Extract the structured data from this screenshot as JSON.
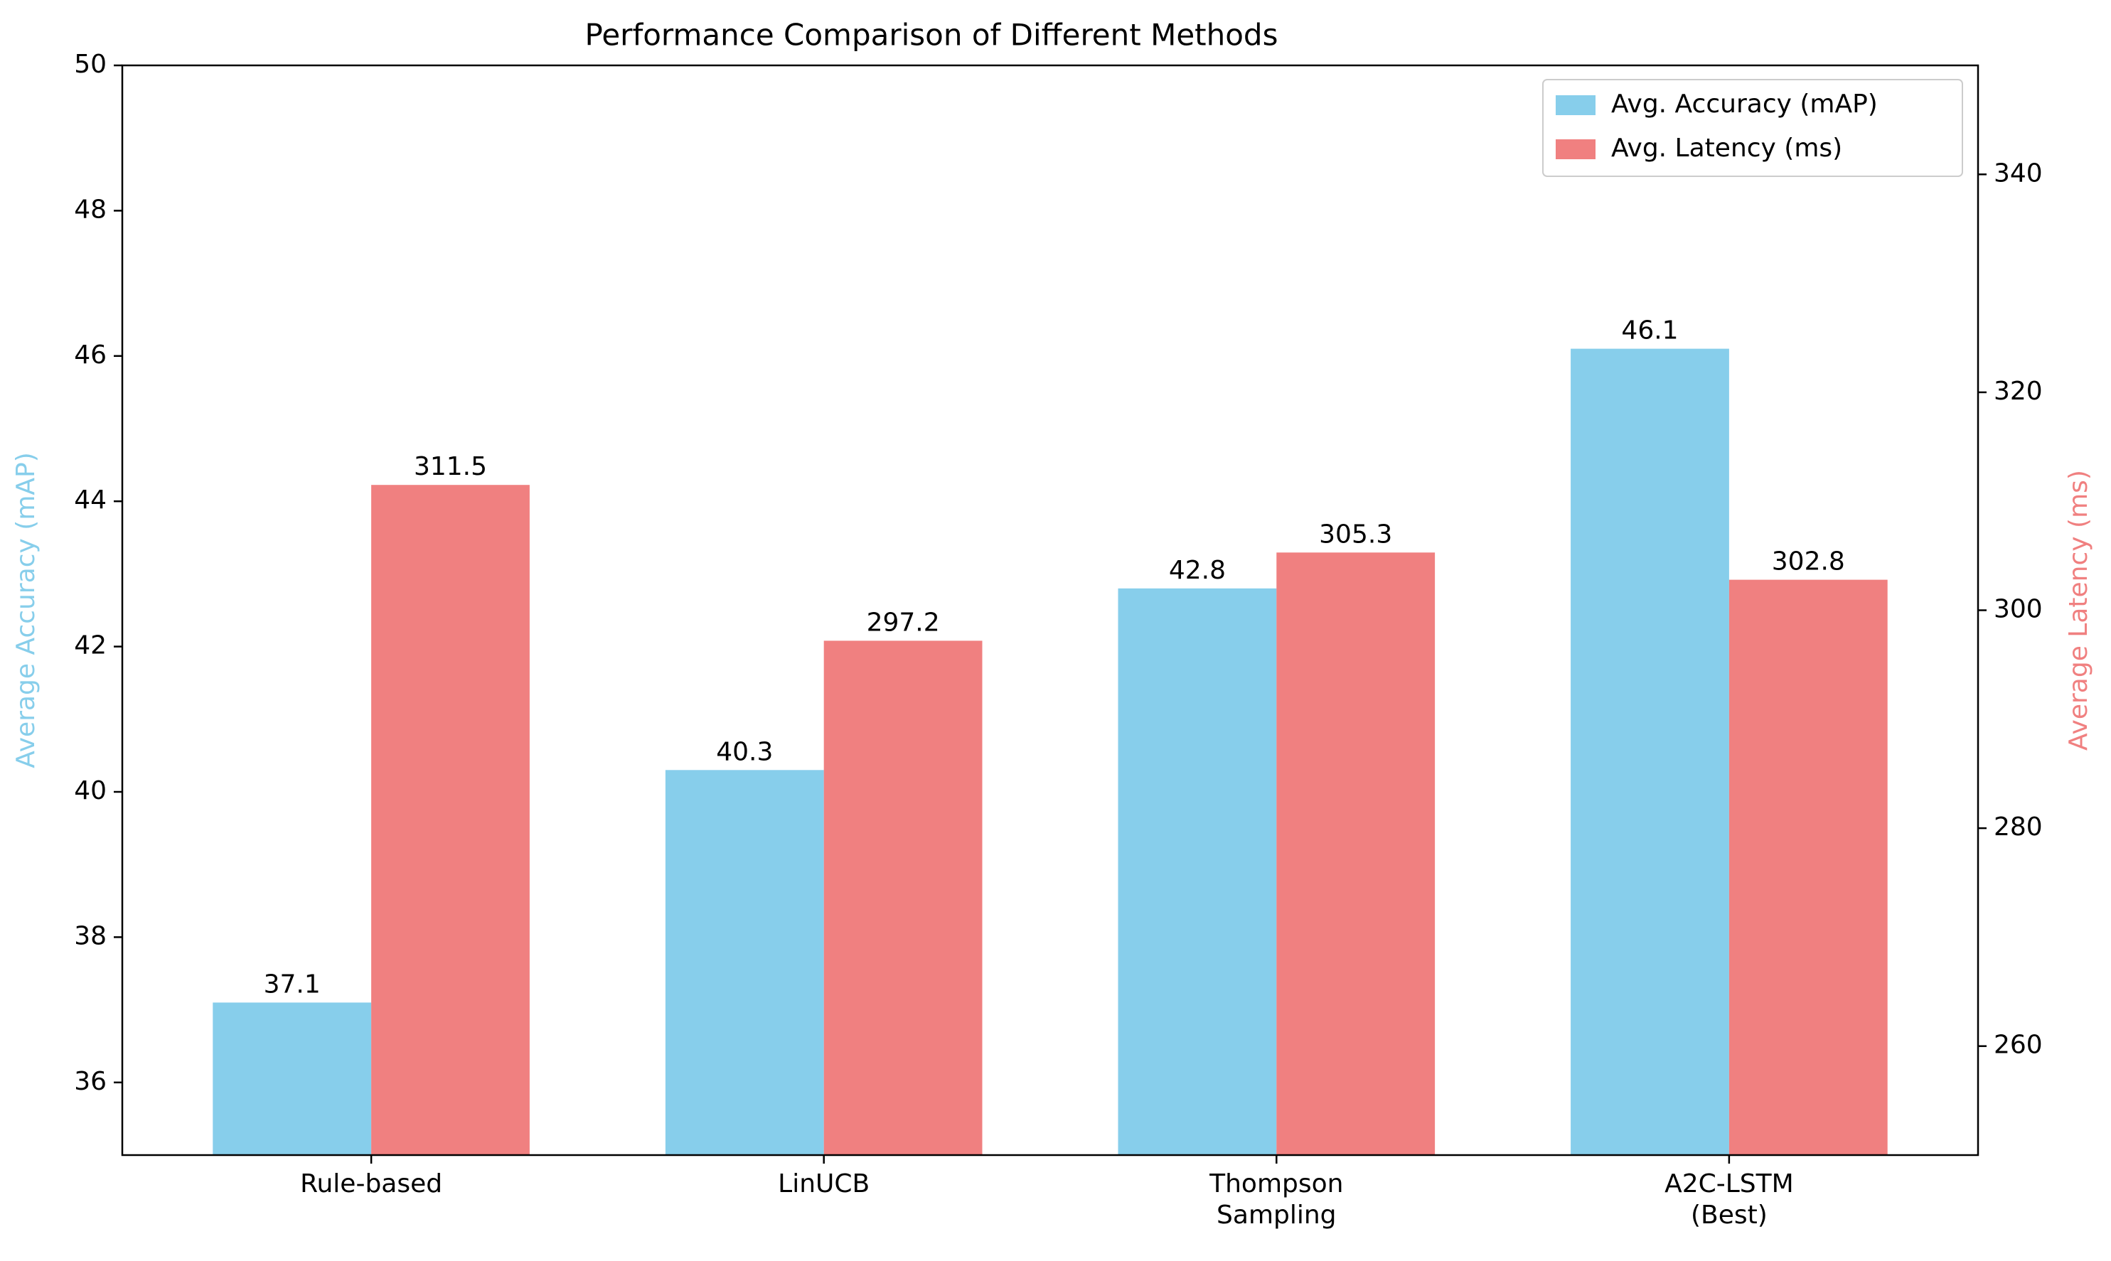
{
  "chart_data": {
    "type": "bar",
    "title": "Performance Comparison of Different Methods",
    "categories": [
      [
        "Rule-based"
      ],
      [
        "LinUCB"
      ],
      [
        "Thompson",
        "Sampling"
      ],
      [
        "A2C-LSTM",
        "(Best)"
      ]
    ],
    "series": [
      {
        "name": "Avg. Accuracy (mAP)",
        "axis": "left",
        "color": "#87CEEB",
        "values": [
          37.1,
          40.3,
          42.8,
          46.1
        ],
        "labels": [
          "37.1",
          "40.3",
          "42.8",
          "46.1"
        ]
      },
      {
        "name": "Avg. Latency (ms)",
        "axis": "right",
        "color": "#F08080",
        "values": [
          311.5,
          297.2,
          305.3,
          302.8
        ],
        "labels": [
          "311.5",
          "297.2",
          "305.3",
          "302.8"
        ]
      }
    ],
    "y_left": {
      "label": "Average Accuracy (mAP)",
      "color": "#87CEEB",
      "lim": [
        35,
        50
      ],
      "ticks": [
        36,
        38,
        40,
        42,
        44,
        46,
        48,
        50
      ]
    },
    "y_right": {
      "label": "Average Latency (ms)",
      "color": "#F08080",
      "lim": [
        250,
        350
      ],
      "ticks": [
        260,
        280,
        300,
        320,
        340
      ]
    },
    "legend": {
      "position": "top-right",
      "entries": [
        "Avg. Accuracy (mAP)",
        "Avg. Latency (ms)"
      ]
    },
    "grid": false
  }
}
